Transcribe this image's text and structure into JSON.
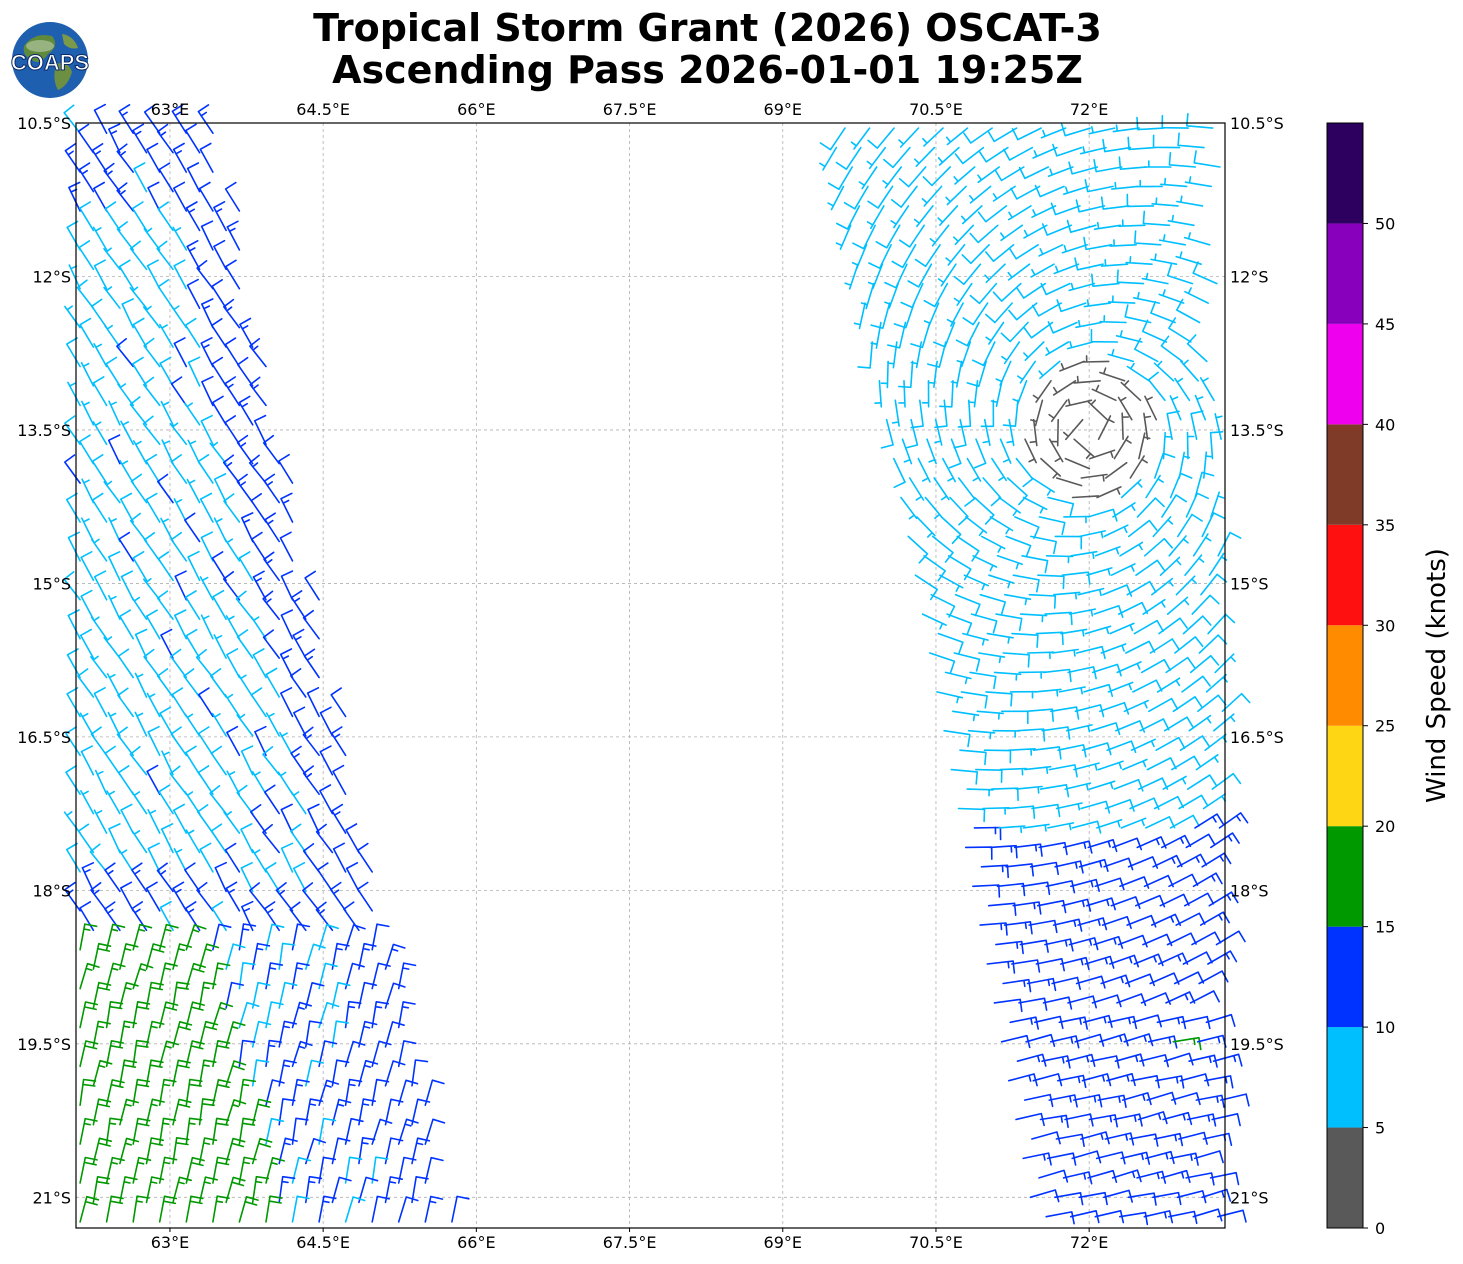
{
  "title_line1": "Tropical Storm Grant (2026) OSCAT-3",
  "title_line2": "Ascending Pass 2026-01-01 19:25Z",
  "logo": {
    "text": "COAPS",
    "icon": "globe-icon"
  },
  "chart_data": {
    "type": "wind-barb-map",
    "x_axis": {
      "ticks": [
        "63°E",
        "64.5°E",
        "66°E",
        "67.5°E",
        "69°E",
        "70.5°E",
        "72°E"
      ],
      "tick_values": [
        63,
        64.5,
        66,
        67.5,
        69,
        70.5,
        72
      ],
      "range": [
        62.08,
        73.33
      ]
    },
    "y_axis": {
      "ticks": [
        "10.5°S",
        "12°S",
        "13.5°S",
        "15°S",
        "16.5°S",
        "18°S",
        "19.5°S",
        "21°S"
      ],
      "tick_values": [
        -10.5,
        -12,
        -13.5,
        -15,
        -16.5,
        -18,
        -19.5,
        -21
      ],
      "range": [
        -21.3,
        -10.5
      ]
    },
    "grid": true,
    "colorbar": {
      "label": "Wind Speed (knots)",
      "ticks": [
        "0",
        "5",
        "10",
        "15",
        "20",
        "25",
        "30",
        "35",
        "40",
        "45",
        "50"
      ],
      "bins": [
        {
          "min": 0,
          "max": 5,
          "color": "#595959"
        },
        {
          "min": 5,
          "max": 10,
          "color": "#00bfff"
        },
        {
          "min": 10,
          "max": 15,
          "color": "#0033ff"
        },
        {
          "min": 15,
          "max": 20,
          "color": "#009900"
        },
        {
          "min": 20,
          "max": 25,
          "color": "#ffd614"
        },
        {
          "min": 25,
          "max": 30,
          "color": "#ff8c00"
        },
        {
          "min": 30,
          "max": 35,
          "color": "#ff1010"
        },
        {
          "min": 35,
          "max": 40,
          "color": "#7f3a28"
        },
        {
          "min": 40,
          "max": 45,
          "color": "#ee00ee"
        },
        {
          "min": 45,
          "max": 50,
          "color": "#8800bb"
        },
        {
          "min": 50,
          "max": 55,
          "color": "#2d005f"
        }
      ]
    },
    "storm_center": {
      "lon": 72.0,
      "lat": -13.5
    },
    "swaths": [
      {
        "name": "West swath",
        "lon_top": [
          62.0,
          63.5
        ],
        "lon_bottom": [
          62.0,
          65.8
        ]
      },
      {
        "name": "East swath",
        "lon_top": [
          69.5,
          73.4
        ],
        "lon_bottom": [
          71.6,
          73.4
        ]
      }
    ]
  }
}
